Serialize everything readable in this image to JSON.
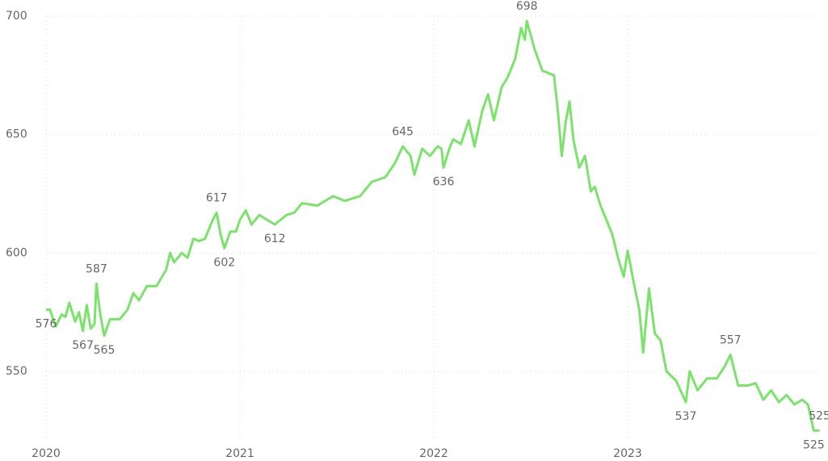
{
  "chart_data": {
    "type": "line",
    "x": [
      2020.0,
      2020.02,
      2020.05,
      2020.08,
      2020.1,
      2020.12,
      2020.15,
      2020.17,
      2020.19,
      2020.21,
      2020.23,
      2020.25,
      2020.26,
      2020.28,
      2020.3,
      2020.33,
      2020.38,
      2020.42,
      2020.45,
      2020.48,
      2020.52,
      2020.57,
      2020.62,
      2020.64,
      2020.66,
      2020.7,
      2020.73,
      2020.76,
      2020.79,
      2020.82,
      2020.86,
      2020.88,
      2020.9,
      2020.92,
      2020.95,
      2020.98,
      2021.0,
      2021.03,
      2021.06,
      2021.1,
      2021.14,
      2021.18,
      2021.24,
      2021.28,
      2021.32,
      2021.4,
      2021.48,
      2021.54,
      2021.62,
      2021.68,
      2021.75,
      2021.8,
      2021.84,
      2021.88,
      2021.9,
      2021.94,
      2021.98,
      2022.02,
      2022.04,
      2022.05,
      2022.08,
      2022.1,
      2022.14,
      2022.18,
      2022.21,
      2022.25,
      2022.28,
      2022.31,
      2022.35,
      2022.38,
      2022.42,
      2022.45,
      2022.47,
      2022.48,
      2022.52,
      2022.56,
      2022.62,
      2022.64,
      2022.66,
      2022.68,
      2022.7,
      2022.72,
      2022.75,
      2022.78,
      2022.81,
      2022.83,
      2022.86,
      2022.89,
      2022.92,
      2022.95,
      2022.98,
      2023.0,
      2023.03,
      2023.06,
      2023.08,
      2023.11,
      2023.14,
      2023.17,
      2023.2,
      2023.25,
      2023.3,
      2023.32,
      2023.36,
      2023.41,
      2023.46,
      2023.5,
      2023.53,
      2023.57,
      2023.62,
      2023.66,
      2023.7,
      2023.74,
      2023.78,
      2023.82,
      2023.86,
      2023.9,
      2023.93,
      2023.96,
      2023.99
    ],
    "series": [
      {
        "color": "#7be36b",
        "values": [
          576,
          576,
          569,
          574,
          573,
          579,
          571,
          575,
          567,
          578,
          568,
          570,
          587,
          574,
          565,
          572,
          572,
          576,
          583,
          580,
          586,
          586,
          593,
          600,
          596,
          600,
          598,
          606,
          605,
          606,
          614,
          617,
          608,
          602,
          609,
          609,
          614,
          618,
          612,
          616,
          614,
          612,
          616,
          617,
          621,
          620,
          624,
          622,
          624,
          630,
          632,
          638,
          645,
          641,
          633,
          644,
          641,
          645,
          644,
          636,
          644,
          648,
          646,
          656,
          645,
          660,
          667,
          656,
          670,
          674,
          682,
          695,
          690,
          698,
          686,
          677,
          675,
          660,
          641,
          655,
          664,
          648,
          636,
          641,
          626,
          628,
          620,
          614,
          608,
          598,
          590,
          601,
          588,
          576,
          558,
          585,
          566,
          563,
          550,
          546,
          537,
          550,
          542,
          547,
          547,
          552,
          557,
          544,
          544,
          545,
          538,
          542,
          537,
          540,
          536,
          538,
          536,
          525,
          525
        ],
        "value_labels": [
          "576",
          null,
          null,
          null,
          null,
          null,
          null,
          null,
          "567",
          null,
          null,
          null,
          "587",
          null,
          "565",
          null,
          null,
          null,
          null,
          null,
          null,
          null,
          null,
          null,
          null,
          null,
          null,
          null,
          null,
          null,
          null,
          "617",
          null,
          "602",
          null,
          null,
          null,
          null,
          null,
          null,
          null,
          "612",
          null,
          null,
          null,
          null,
          null,
          null,
          null,
          null,
          null,
          null,
          "645",
          null,
          null,
          null,
          null,
          null,
          null,
          "636",
          null,
          null,
          null,
          null,
          null,
          null,
          null,
          null,
          null,
          null,
          null,
          null,
          null,
          "698",
          null,
          null,
          null,
          null,
          null,
          null,
          null,
          null,
          null,
          null,
          null,
          null,
          null,
          null,
          null,
          null,
          null,
          null,
          null,
          null,
          null,
          null,
          null,
          null,
          null,
          null,
          "537",
          null,
          null,
          null,
          null,
          null,
          "557",
          null,
          null,
          null,
          null,
          null,
          null,
          null,
          null,
          null,
          null,
          "525",
          "525"
        ]
      }
    ],
    "xlim": [
      2020,
      2024
    ],
    "xticks": [
      2020,
      2021,
      2022,
      2023
    ],
    "ylim": [
      521,
      700
    ],
    "yticks": [
      550,
      600,
      650,
      700
    ],
    "grid": true
  }
}
